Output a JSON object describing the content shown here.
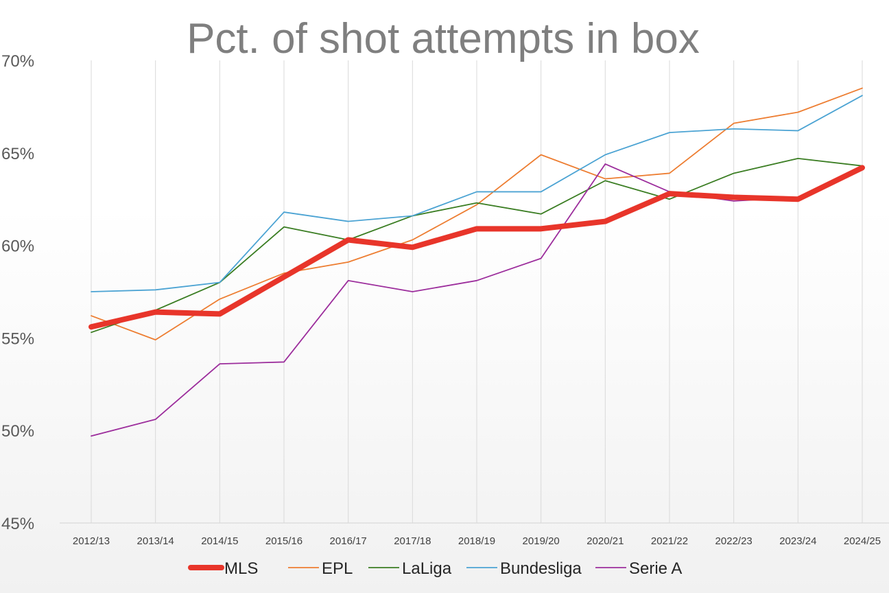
{
  "chart_data": {
    "type": "line",
    "title": "Pct. of shot attempts in box",
    "xlabel": "",
    "ylabel": "",
    "ylim": [
      45,
      70
    ],
    "y_ticks": [
      "45%",
      "50%",
      "55%",
      "60%",
      "65%",
      "70%"
    ],
    "y_tick_values": [
      45,
      50,
      55,
      60,
      65,
      70
    ],
    "grid": "vertical",
    "legend_position": "bottom",
    "categories": [
      "2012/13",
      "2013/14",
      "2014/15",
      "2015/16",
      "2016/17",
      "2017/18",
      "2018/19",
      "2019/20",
      "2020/21",
      "2021/22",
      "2022/23",
      "2023/24",
      "2024/25"
    ],
    "series": [
      {
        "name": "MLS",
        "color": "#e8352a",
        "weight": "bold",
        "values": [
          55.6,
          56.4,
          56.3,
          58.3,
          60.3,
          59.9,
          60.9,
          60.9,
          61.3,
          62.8,
          62.6,
          62.5,
          64.2
        ]
      },
      {
        "name": "EPL",
        "color": "#ed7d31",
        "weight": "normal",
        "values": [
          56.2,
          54.9,
          57.1,
          58.5,
          59.1,
          60.3,
          62.2,
          64.9,
          63.6,
          63.9,
          66.6,
          67.2,
          68.5
        ]
      },
      {
        "name": "LaLiga",
        "color": "#3a7d22",
        "weight": "normal",
        "values": [
          55.3,
          56.5,
          58.0,
          61.0,
          60.3,
          61.6,
          62.3,
          61.7,
          63.5,
          62.5,
          63.9,
          64.7,
          64.3
        ]
      },
      {
        "name": "Bundesliga",
        "color": "#4ba3d3",
        "weight": "normal",
        "values": [
          57.5,
          57.6,
          58.0,
          61.8,
          61.3,
          61.6,
          62.9,
          62.9,
          64.9,
          66.1,
          66.3,
          66.2,
          68.1
        ]
      },
      {
        "name": "Serie A",
        "color": "#9c2d9c",
        "weight": "normal",
        "values": [
          49.7,
          50.6,
          53.6,
          53.7,
          58.1,
          57.5,
          58.1,
          59.3,
          64.4,
          62.9,
          62.4,
          62.6,
          64.3
        ]
      }
    ]
  }
}
